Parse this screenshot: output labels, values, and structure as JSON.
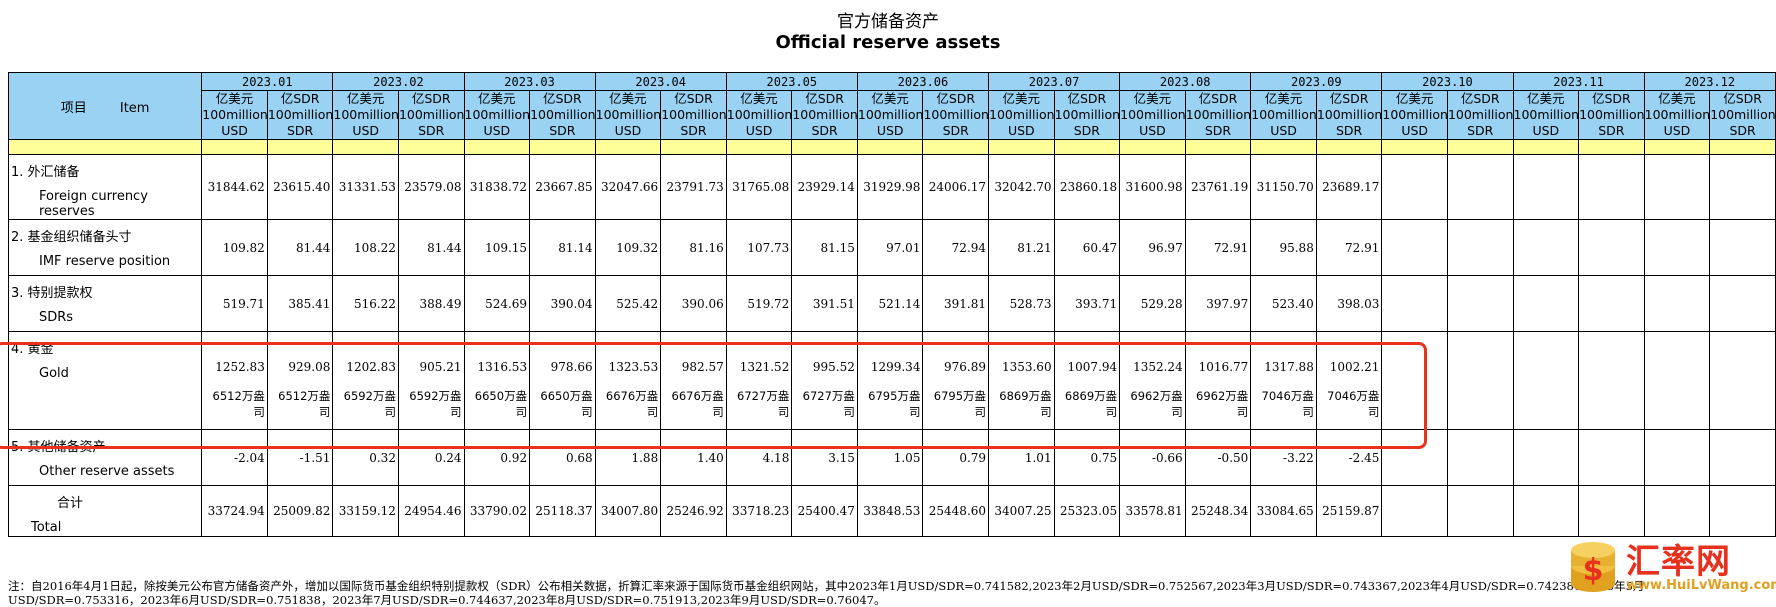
{
  "title_cn": "官方储备资产",
  "title_en": "Official reserve assets",
  "header": {
    "item_cn": "项目",
    "item_en": "Item",
    "months": [
      "2023.01",
      "2023.02",
      "2023.03",
      "2023.04",
      "2023.05",
      "2023.06",
      "2023.07",
      "2023.08",
      "2023.09",
      "2023.10",
      "2023.11",
      "2023.12"
    ],
    "unit_usd": [
      "亿美元",
      "100million",
      "USD"
    ],
    "unit_sdr": [
      "亿SDR",
      "100million",
      "SDR"
    ]
  },
  "rows": [
    {
      "cn": "1.  外汇储备",
      "en": "Foreign currency reserves",
      "values": [
        "31844.62",
        "23615.40",
        "31331.53",
        "23579.08",
        "31838.72",
        "23667.85",
        "32047.66",
        "23791.73",
        "31765.08",
        "23929.14",
        "31929.98",
        "24006.17",
        "32042.70",
        "23860.18",
        "31600.98",
        "23761.19",
        "31150.70",
        "23689.17"
      ]
    },
    {
      "cn": "2.  基金组织储备头寸",
      "en": "IMF reserve position",
      "values": [
        "109.82",
        "81.44",
        "108.22",
        "81.44",
        "109.15",
        "81.14",
        "109.32",
        "81.16",
        "107.73",
        "81.15",
        "97.01",
        "72.94",
        "81.21",
        "60.47",
        "96.97",
        "72.91",
        "95.88",
        "72.91"
      ]
    },
    {
      "cn": "3.  特别提款权",
      "en": "SDRs",
      "values": [
        "519.71",
        "385.41",
        "516.22",
        "388.49",
        "524.69",
        "390.04",
        "525.42",
        "390.06",
        "519.72",
        "391.51",
        "521.14",
        "391.81",
        "528.73",
        "393.71",
        "529.28",
        "397.97",
        "523.40",
        "398.03"
      ]
    },
    {
      "cn": "4.  黄金",
      "en": "Gold",
      "values": [
        "1252.83",
        "929.08",
        "1202.83",
        "905.21",
        "1316.53",
        "978.66",
        "1323.53",
        "982.57",
        "1321.52",
        "995.52",
        "1299.34",
        "976.89",
        "1353.60",
        "1007.94",
        "1352.24",
        "1016.77",
        "1317.88",
        "1002.21"
      ],
      "ounces": [
        "6512万盎司",
        "6512万盎司",
        "6592万盎司",
        "6592万盎司",
        "6650万盎司",
        "6650万盎司",
        "6676万盎司",
        "6676万盎司",
        "6727万盎司",
        "6727万盎司",
        "6795万盎司",
        "6795万盎司",
        "6869万盎司",
        "6869万盎司",
        "6962万盎司",
        "6962万盎司",
        "7046万盎司",
        "7046万盎司"
      ]
    },
    {
      "cn": "5.  其他储备资产",
      "en": "Other reserve assets",
      "values": [
        "-2.04",
        "-1.51",
        "0.32",
        "0.24",
        "0.92",
        "0.68",
        "1.88",
        "1.40",
        "4.18",
        "3.15",
        "1.05",
        "0.79",
        "1.01",
        "0.75",
        "-0.66",
        "-0.50",
        "-3.22",
        "-2.45"
      ]
    },
    {
      "cn": "合计",
      "en": "Total",
      "values": [
        "33724.94",
        "25009.82",
        "33159.12",
        "24954.46",
        "33790.02",
        "25118.37",
        "34007.80",
        "25246.92",
        "33718.23",
        "25400.47",
        "33848.53",
        "25448.60",
        "34007.25",
        "25323.05",
        "33578.81",
        "25248.34",
        "33084.65",
        "25159.87"
      ]
    }
  ],
  "note": "注：自2016年4月1日起，除按美元公布官方储备资产外，增加以国际货币基金组织特别提款权（SDR）公布相关数据，折算汇率来源于国际货币基金组织网站，其中2023年1月USD/SDR=0.741582,2023年2月USD/SDR=0.752567,2023年3月USD/SDR=0.743367,2023年4月USD/SDR=0.742386,2023年5月USD/SDR=0.753316，2023年6月USD/SDR=0.751838，2023年7月USD/SDR=0.744637,2023年8月USD/SDR=0.751913,2023年9月USD/SDR=0.76047。",
  "watermark": {
    "text": "汇率网",
    "url": "www.HuiLvWang.com"
  },
  "colors": {
    "header_bg": "#9ad2f4",
    "band_bg": "#ffff99",
    "highlight_border": "#e8321e",
    "watermark_red": "#e8301e",
    "watermark_gold": "#e0a020"
  }
}
